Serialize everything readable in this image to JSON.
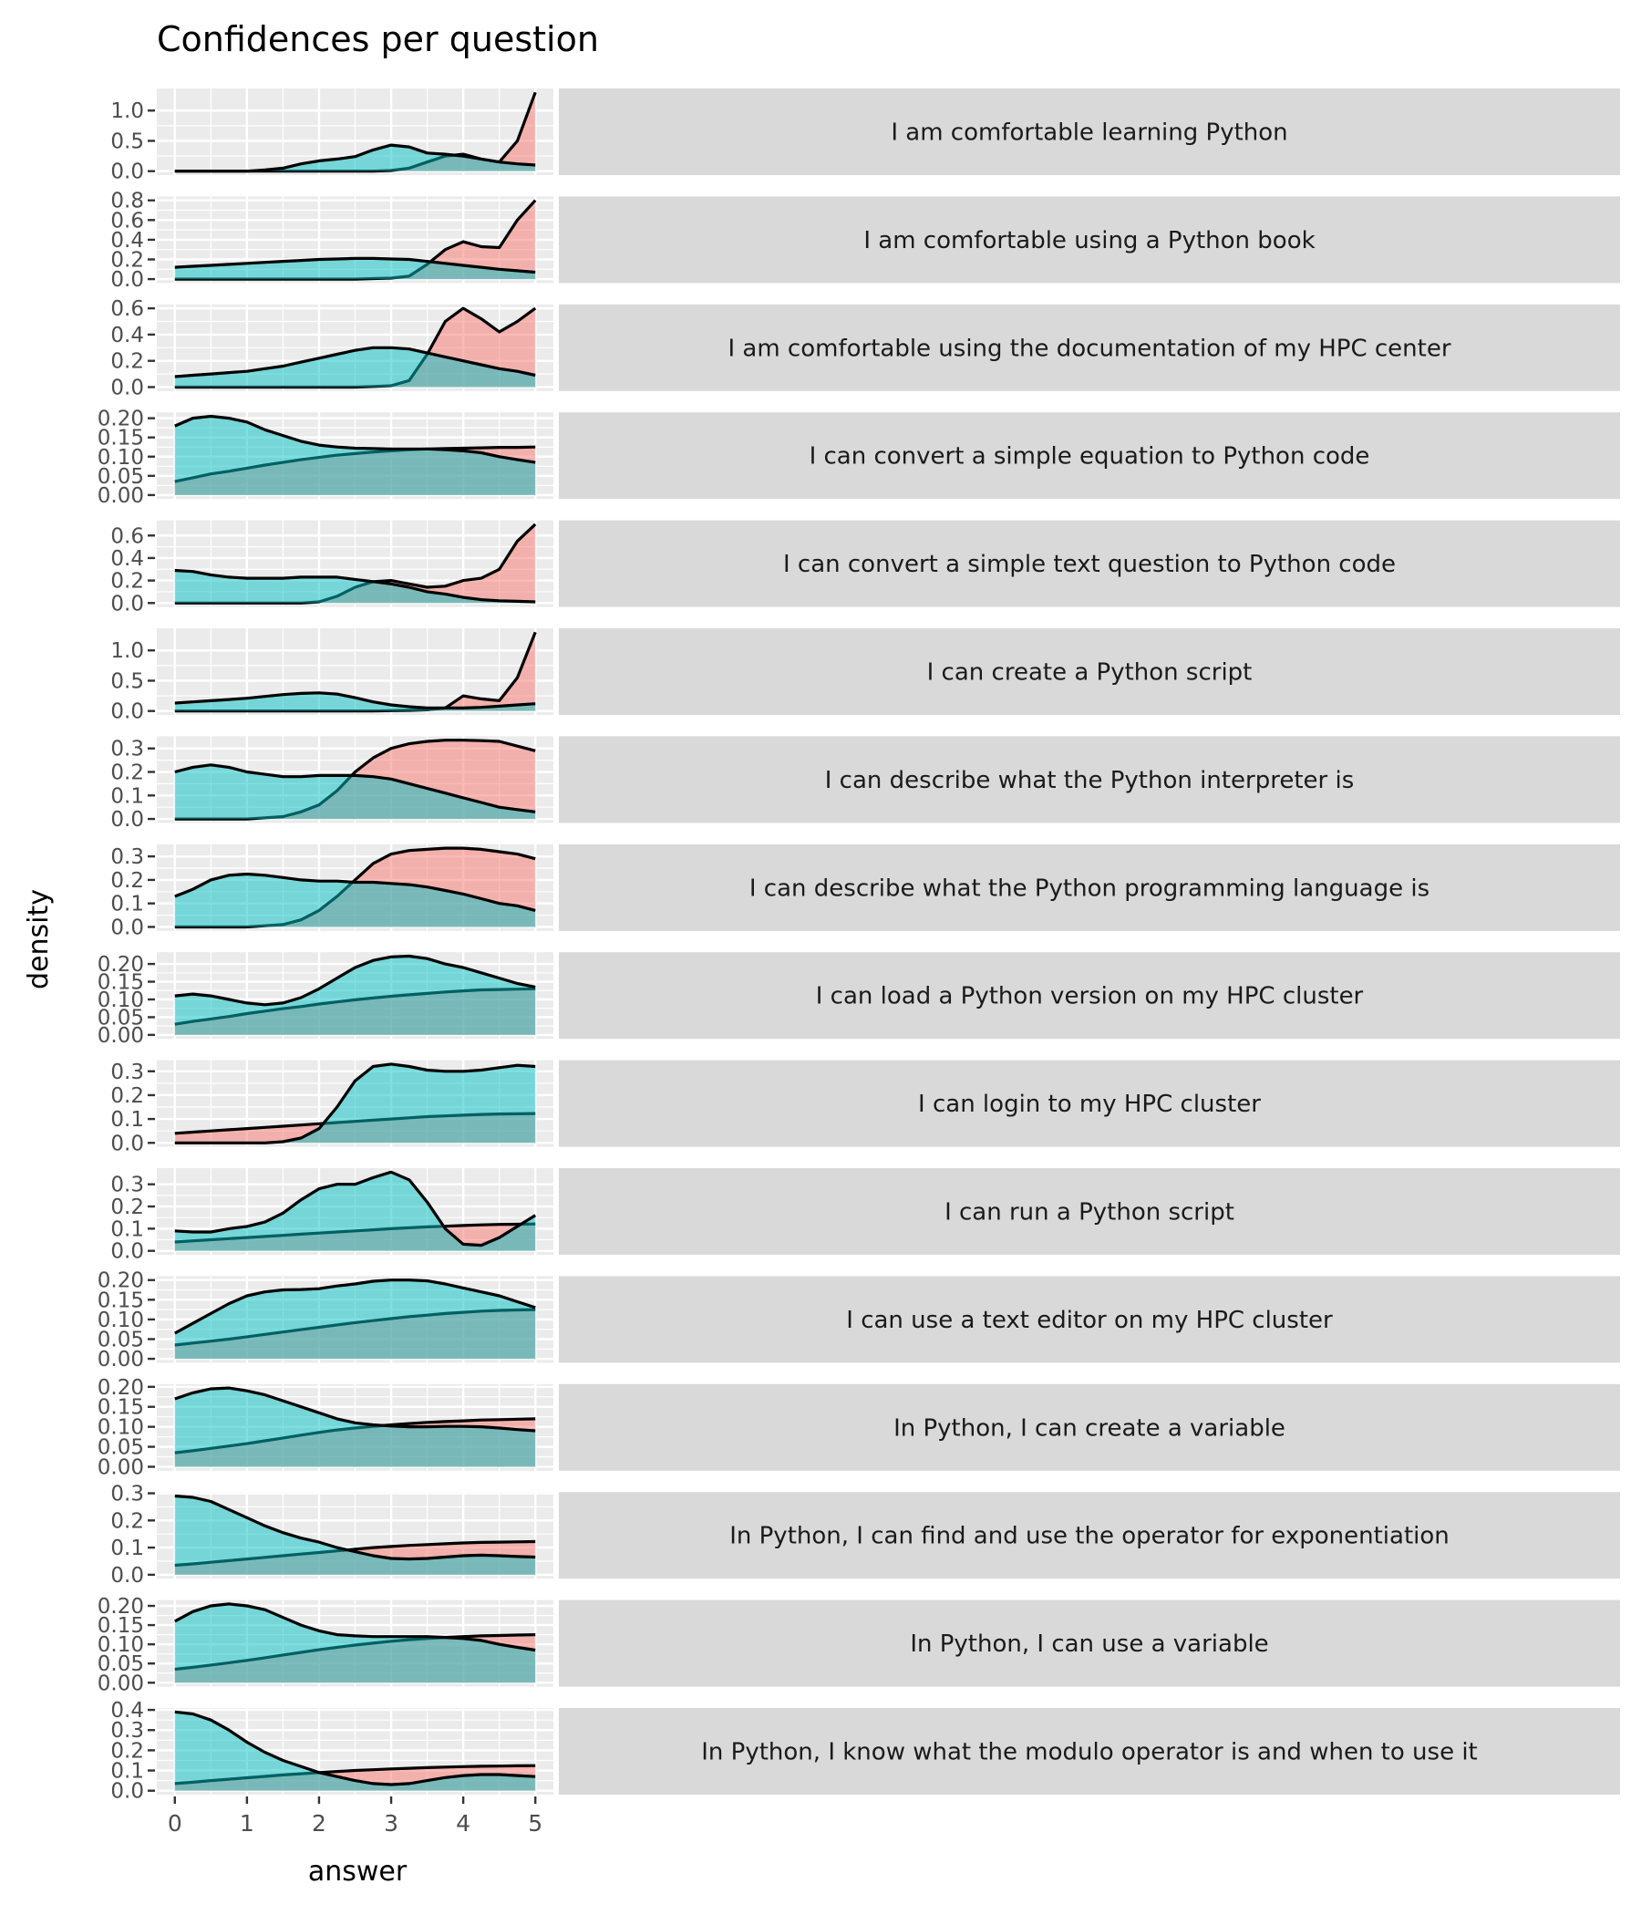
{
  "chart_data": {
    "type": "area",
    "subtype": "faceted density",
    "title": "Confidences per question",
    "xlabel": "answer",
    "ylabel": "density",
    "xlim": [
      -0.25,
      5.25
    ],
    "x_ticks": [
      0,
      1,
      2,
      3,
      4,
      5
    ],
    "x_tick_labels": [
      "0",
      "1",
      "2",
      "3",
      "4",
      "5"
    ],
    "grid": true,
    "legend": "none",
    "x": [
      0,
      0.25,
      0.5,
      0.75,
      1,
      1.25,
      1.5,
      1.75,
      2,
      2.25,
      2.5,
      2.75,
      3,
      3.25,
      3.5,
      3.75,
      4,
      4.25,
      4.5,
      4.75,
      5
    ],
    "group_colors": {
      "red": "#F8766D",
      "cyan": "#00BFC4"
    },
    "panel_background": "#EBEBEB",
    "strip_background": "#D9D9D9",
    "panels": [
      {
        "label": "I am comfortable learning Python",
        "y_ticks": [
          0,
          0.5,
          1.0
        ],
        "y_tick_labels": [
          "0.0",
          "0.5",
          "1.0"
        ],
        "red": [
          0,
          0,
          0,
          0,
          0,
          0,
          0,
          0,
          0,
          0,
          0,
          0,
          0.01,
          0.05,
          0.15,
          0.25,
          0.28,
          0.2,
          0.15,
          0.5,
          1.3
        ],
        "cyan": [
          0,
          0,
          0,
          0,
          0,
          0.02,
          0.05,
          0.12,
          0.17,
          0.2,
          0.24,
          0.35,
          0.43,
          0.4,
          0.3,
          0.28,
          0.25,
          0.2,
          0.15,
          0.12,
          0.1
        ]
      },
      {
        "label": "I am comfortable using a Python book",
        "y_ticks": [
          0,
          0.2,
          0.4,
          0.6,
          0.8
        ],
        "y_tick_labels": [
          "0.0",
          "0.2",
          "0.4",
          "0.6",
          "0.8"
        ],
        "red": [
          0,
          0,
          0,
          0,
          0,
          0,
          0,
          0,
          0,
          0,
          0,
          0.005,
          0.01,
          0.03,
          0.15,
          0.3,
          0.38,
          0.33,
          0.32,
          0.6,
          0.8
        ],
        "cyan": [
          0.12,
          0.13,
          0.14,
          0.15,
          0.16,
          0.17,
          0.18,
          0.19,
          0.2,
          0.205,
          0.21,
          0.21,
          0.205,
          0.2,
          0.18,
          0.16,
          0.14,
          0.12,
          0.1,
          0.085,
          0.07
        ]
      },
      {
        "label": "I am comfortable using the documentation of my HPC center",
        "y_ticks": [
          0,
          0.2,
          0.4,
          0.6
        ],
        "y_tick_labels": [
          "0.0",
          "0.2",
          "0.4",
          "0.6"
        ],
        "red": [
          0,
          0,
          0,
          0,
          0,
          0,
          0,
          0,
          0,
          0,
          0,
          0.005,
          0.01,
          0.05,
          0.25,
          0.5,
          0.6,
          0.52,
          0.42,
          0.5,
          0.6
        ],
        "cyan": [
          0.08,
          0.09,
          0.1,
          0.11,
          0.12,
          0.14,
          0.16,
          0.19,
          0.22,
          0.25,
          0.28,
          0.3,
          0.3,
          0.29,
          0.26,
          0.23,
          0.2,
          0.17,
          0.14,
          0.12,
          0.09
        ]
      },
      {
        "label": "I can convert a simple equation to Python code",
        "y_ticks": [
          0,
          0.05,
          0.1,
          0.15,
          0.2
        ],
        "y_tick_labels": [
          "0.00",
          "0.05",
          "0.10",
          "0.15",
          "0.20"
        ],
        "red": [
          0.035,
          0.045,
          0.055,
          0.062,
          0.07,
          0.078,
          0.085,
          0.092,
          0.098,
          0.104,
          0.108,
          0.112,
          0.115,
          0.118,
          0.12,
          0.121,
          0.122,
          0.123,
          0.124,
          0.124,
          0.125
        ],
        "cyan": [
          0.18,
          0.2,
          0.205,
          0.2,
          0.19,
          0.17,
          0.155,
          0.14,
          0.13,
          0.125,
          0.122,
          0.121,
          0.12,
          0.12,
          0.12,
          0.118,
          0.115,
          0.11,
          0.1,
          0.092,
          0.085
        ]
      },
      {
        "label": "I can convert a simple text question to Python code",
        "y_ticks": [
          0,
          0.2,
          0.4,
          0.6
        ],
        "y_tick_labels": [
          "0.0",
          "0.2",
          "0.4",
          "0.6"
        ],
        "red": [
          0,
          0,
          0,
          0,
          0,
          0,
          0,
          0,
          0.01,
          0.06,
          0.14,
          0.19,
          0.2,
          0.17,
          0.14,
          0.15,
          0.2,
          0.22,
          0.3,
          0.55,
          0.7
        ],
        "cyan": [
          0.29,
          0.28,
          0.25,
          0.23,
          0.22,
          0.22,
          0.22,
          0.23,
          0.23,
          0.23,
          0.21,
          0.19,
          0.17,
          0.14,
          0.1,
          0.08,
          0.05,
          0.03,
          0.02,
          0.015,
          0.01
        ]
      },
      {
        "label": "I can create a Python script",
        "y_ticks": [
          0,
          0.5,
          1.0
        ],
        "y_tick_labels": [
          "0.0",
          "0.5",
          "1.0"
        ],
        "red": [
          0,
          0,
          0,
          0,
          0,
          0,
          0,
          0,
          0,
          0,
          0,
          0,
          0.005,
          0.01,
          0.02,
          0.05,
          0.25,
          0.2,
          0.17,
          0.55,
          1.3
        ],
        "cyan": [
          0.13,
          0.15,
          0.17,
          0.19,
          0.21,
          0.24,
          0.27,
          0.29,
          0.3,
          0.28,
          0.22,
          0.15,
          0.1,
          0.07,
          0.05,
          0.05,
          0.05,
          0.06,
          0.08,
          0.1,
          0.12
        ]
      },
      {
        "label": "I can describe what the Python interpreter is",
        "y_ticks": [
          0,
          0.1,
          0.2,
          0.3
        ],
        "y_tick_labels": [
          "0.0",
          "0.1",
          "0.2",
          "0.3"
        ],
        "red": [
          0,
          0,
          0,
          0,
          0,
          0.005,
          0.01,
          0.03,
          0.06,
          0.12,
          0.2,
          0.26,
          0.3,
          0.32,
          0.33,
          0.335,
          0.335,
          0.333,
          0.33,
          0.31,
          0.29
        ],
        "cyan": [
          0.2,
          0.22,
          0.23,
          0.22,
          0.2,
          0.19,
          0.18,
          0.18,
          0.185,
          0.185,
          0.185,
          0.18,
          0.17,
          0.15,
          0.13,
          0.11,
          0.09,
          0.07,
          0.05,
          0.04,
          0.03
        ]
      },
      {
        "label": "I can describe what the Python programming language is",
        "y_ticks": [
          0,
          0.1,
          0.2,
          0.3
        ],
        "y_tick_labels": [
          "0.0",
          "0.1",
          "0.2",
          "0.3"
        ],
        "red": [
          0,
          0,
          0,
          0,
          0,
          0.005,
          0.01,
          0.03,
          0.07,
          0.13,
          0.2,
          0.27,
          0.31,
          0.325,
          0.33,
          0.335,
          0.335,
          0.33,
          0.32,
          0.31,
          0.29
        ],
        "cyan": [
          0.13,
          0.16,
          0.2,
          0.22,
          0.225,
          0.22,
          0.21,
          0.2,
          0.195,
          0.195,
          0.19,
          0.19,
          0.185,
          0.18,
          0.17,
          0.155,
          0.14,
          0.12,
          0.1,
          0.09,
          0.07
        ]
      },
      {
        "label": "I can load a Python version on my HPC cluster",
        "y_ticks": [
          0,
          0.05,
          0.1,
          0.15,
          0.2
        ],
        "y_tick_labels": [
          "0.00",
          "0.05",
          "0.10",
          "0.15",
          "0.20"
        ],
        "red": [
          0.03,
          0.038,
          0.045,
          0.052,
          0.06,
          0.067,
          0.074,
          0.08,
          0.087,
          0.093,
          0.099,
          0.104,
          0.109,
          0.113,
          0.117,
          0.121,
          0.124,
          0.127,
          0.128,
          0.129,
          0.13
        ],
        "cyan": [
          0.11,
          0.115,
          0.11,
          0.1,
          0.09,
          0.085,
          0.09,
          0.105,
          0.13,
          0.16,
          0.19,
          0.21,
          0.22,
          0.222,
          0.215,
          0.2,
          0.19,
          0.175,
          0.16,
          0.145,
          0.135
        ]
      },
      {
        "label": "I can login to my HPC cluster",
        "y_ticks": [
          0,
          0.1,
          0.2,
          0.3
        ],
        "y_tick_labels": [
          "0.0",
          "0.1",
          "0.2",
          "0.3"
        ],
        "red": [
          0.04,
          0.045,
          0.05,
          0.055,
          0.06,
          0.065,
          0.07,
          0.075,
          0.08,
          0.085,
          0.09,
          0.095,
          0.1,
          0.105,
          0.11,
          0.113,
          0.116,
          0.119,
          0.121,
          0.122,
          0.123
        ],
        "cyan": [
          0,
          0,
          0,
          0,
          0,
          0,
          0.005,
          0.02,
          0.06,
          0.15,
          0.26,
          0.32,
          0.33,
          0.32,
          0.305,
          0.3,
          0.3,
          0.305,
          0.315,
          0.325,
          0.32
        ]
      },
      {
        "label": "I can run a Python script",
        "y_ticks": [
          0,
          0.1,
          0.2,
          0.3
        ],
        "y_tick_labels": [
          "0.0",
          "0.1",
          "0.2",
          "0.3"
        ],
        "red": [
          0.04,
          0.045,
          0.05,
          0.055,
          0.06,
          0.065,
          0.07,
          0.075,
          0.08,
          0.085,
          0.09,
          0.095,
          0.1,
          0.104,
          0.108,
          0.111,
          0.114,
          0.117,
          0.119,
          0.12,
          0.121
        ],
        "cyan": [
          0.09,
          0.085,
          0.085,
          0.1,
          0.11,
          0.13,
          0.17,
          0.23,
          0.28,
          0.3,
          0.3,
          0.33,
          0.355,
          0.32,
          0.22,
          0.1,
          0.03,
          0.025,
          0.06,
          0.11,
          0.16
        ]
      },
      {
        "label": "I can use a text editor on my HPC cluster",
        "y_ticks": [
          0,
          0.05,
          0.1,
          0.15,
          0.2
        ],
        "y_tick_labels": [
          "0.00",
          "0.05",
          "0.10",
          "0.15",
          "0.20"
        ],
        "red": [
          0.035,
          0.04,
          0.045,
          0.05,
          0.056,
          0.062,
          0.068,
          0.074,
          0.08,
          0.086,
          0.092,
          0.097,
          0.102,
          0.107,
          0.111,
          0.115,
          0.118,
          0.121,
          0.123,
          0.124,
          0.125
        ],
        "cyan": [
          0.065,
          0.09,
          0.115,
          0.14,
          0.16,
          0.17,
          0.175,
          0.176,
          0.178,
          0.185,
          0.19,
          0.197,
          0.2,
          0.2,
          0.198,
          0.19,
          0.18,
          0.17,
          0.16,
          0.145,
          0.13
        ]
      },
      {
        "label": "In Python, I can create a variable",
        "y_ticks": [
          0,
          0.05,
          0.1,
          0.15,
          0.2
        ],
        "y_tick_labels": [
          "0.00",
          "0.05",
          "0.10",
          "0.15",
          "0.20"
        ],
        "red": [
          0.035,
          0.04,
          0.046,
          0.052,
          0.058,
          0.065,
          0.072,
          0.079,
          0.086,
          0.092,
          0.097,
          0.101,
          0.105,
          0.108,
          0.111,
          0.113,
          0.115,
          0.117,
          0.118,
          0.119,
          0.12
        ],
        "cyan": [
          0.17,
          0.185,
          0.195,
          0.197,
          0.19,
          0.18,
          0.165,
          0.15,
          0.135,
          0.12,
          0.11,
          0.105,
          0.102,
          0.1,
          0.1,
          0.101,
          0.101,
          0.1,
          0.097,
          0.093,
          0.09
        ]
      },
      {
        "label": "In Python, I can find and use the operator for exponentiation",
        "y_ticks": [
          0,
          0.1,
          0.2,
          0.3
        ],
        "y_tick_labels": [
          "0.0",
          "0.1",
          "0.2",
          "0.3"
        ],
        "red": [
          0.035,
          0.04,
          0.046,
          0.052,
          0.058,
          0.064,
          0.07,
          0.076,
          0.082,
          0.088,
          0.094,
          0.1,
          0.104,
          0.108,
          0.111,
          0.114,
          0.117,
          0.119,
          0.12,
          0.121,
          0.122
        ],
        "cyan": [
          0.29,
          0.285,
          0.27,
          0.24,
          0.21,
          0.18,
          0.155,
          0.135,
          0.12,
          0.1,
          0.085,
          0.07,
          0.06,
          0.058,
          0.06,
          0.065,
          0.07,
          0.072,
          0.07,
          0.067,
          0.065
        ]
      },
      {
        "label": "In Python, I can use a variable",
        "y_ticks": [
          0,
          0.05,
          0.1,
          0.15,
          0.2
        ],
        "y_tick_labels": [
          "0.00",
          "0.05",
          "0.10",
          "0.15",
          "0.20"
        ],
        "red": [
          0.035,
          0.04,
          0.046,
          0.052,
          0.058,
          0.065,
          0.072,
          0.079,
          0.086,
          0.092,
          0.098,
          0.103,
          0.108,
          0.112,
          0.115,
          0.118,
          0.12,
          0.122,
          0.123,
          0.124,
          0.125
        ],
        "cyan": [
          0.16,
          0.185,
          0.2,
          0.205,
          0.2,
          0.19,
          0.17,
          0.15,
          0.135,
          0.125,
          0.122,
          0.12,
          0.12,
          0.12,
          0.12,
          0.118,
          0.115,
          0.11,
          0.1,
          0.092,
          0.085
        ]
      },
      {
        "label": "In Python, I know what the modulo operator is and when to use it",
        "y_ticks": [
          0,
          0.1,
          0.2,
          0.3,
          0.4
        ],
        "y_tick_labels": [
          "0.0",
          "0.1",
          "0.2",
          "0.3",
          "0.4"
        ],
        "red": [
          0.035,
          0.042,
          0.05,
          0.057,
          0.064,
          0.071,
          0.078,
          0.084,
          0.09,
          0.095,
          0.1,
          0.104,
          0.108,
          0.111,
          0.114,
          0.117,
          0.119,
          0.121,
          0.122,
          0.123,
          0.124
        ],
        "cyan": [
          0.39,
          0.38,
          0.35,
          0.3,
          0.24,
          0.19,
          0.15,
          0.12,
          0.09,
          0.07,
          0.05,
          0.035,
          0.03,
          0.035,
          0.05,
          0.065,
          0.075,
          0.08,
          0.08,
          0.075,
          0.07
        ]
      }
    ]
  }
}
